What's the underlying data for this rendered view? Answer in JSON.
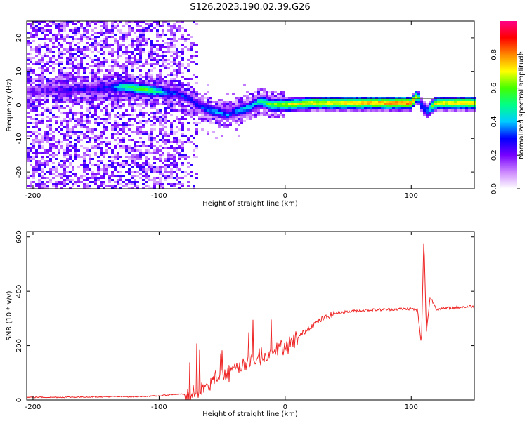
{
  "title": "S126.2023.190.02.39.G26",
  "chart_data": [
    {
      "type": "heatmap",
      "xlabel": "Height of straight line (km)",
      "ylabel": "Frequency (Hz)",
      "xlim": [
        -205,
        150
      ],
      "ylim": [
        -25,
        25
      ],
      "x_ticks": [
        -200,
        -100,
        0,
        100
      ],
      "y_ticks": [
        -20,
        -10,
        0,
        10,
        20
      ],
      "colorbar": {
        "label": "Normalized spectral amplitude",
        "range": [
          0,
          1
        ],
        "ticks": [
          "0.0",
          "0.2",
          "0.4",
          "0.6",
          "0.8"
        ],
        "colors": [
          "#ffffff",
          "#cc88ff",
          "#7700ff",
          "#0000ff",
          "#00ccff",
          "#00ff88",
          "#44ff00",
          "#ffff00",
          "#ff8800",
          "#ff0000",
          "#ff0088"
        ]
      },
      "ridge": {
        "x": [
          -205,
          -140,
          -130,
          -120,
          -110,
          -100,
          -90,
          -85,
          -75,
          -65,
          -55,
          -45,
          -40,
          -30,
          -25,
          -20,
          -10,
          0,
          20,
          50,
          80,
          100,
          105,
          108,
          112,
          120,
          150
        ],
        "y": [
          4,
          5,
          5.5,
          5,
          4.5,
          4,
          3.5,
          3.5,
          1.5,
          -1,
          -2,
          -3,
          -2,
          -1,
          0,
          1,
          0,
          0,
          0.5,
          0.5,
          0.5,
          0.5,
          3,
          0,
          -2,
          0.5,
          0.5
        ],
        "amplitude": [
          0.2,
          0.3,
          0.5,
          0.6,
          0.6,
          0.5,
          0.35,
          0.3,
          0.3,
          0.35,
          0.4,
          0.35,
          0.35,
          0.45,
          0.45,
          0.55,
          0.65,
          0.7,
          0.75,
          0.8,
          0.85,
          0.9,
          0.7,
          0.4,
          0.35,
          0.75,
          0.8
        ]
      },
      "noise_region_x": [
        -205,
        -80
      ]
    },
    {
      "type": "line",
      "xlabel": "Height of straight line (km)",
      "ylabel": "SNR (10 * v/v)",
      "xlim": [
        -205,
        150
      ],
      "ylim": [
        0,
        620
      ],
      "x_ticks": [
        -200,
        -100,
        0,
        100
      ],
      "y_ticks": [
        0,
        200,
        400,
        600
      ],
      "color": "#ee2222",
      "series": [
        {
          "x": [
            -205,
            -180,
            -160,
            -140,
            -120,
            -100,
            -90,
            -80,
            -70,
            -60,
            -50,
            -40,
            -30,
            -20,
            -10,
            0,
            10,
            20,
            30,
            40,
            60,
            80,
            100,
            105,
            108,
            110,
            112,
            115,
            120,
            135,
            150
          ],
          "y": [
            10,
            10,
            11,
            12,
            12,
            15,
            20,
            22,
            30,
            60,
            90,
            110,
            140,
            160,
            180,
            200,
            230,
            270,
            300,
            320,
            330,
            333,
            336,
            330,
            200,
            600,
            250,
            380,
            335,
            340,
            345
          ]
        }
      ]
    }
  ]
}
